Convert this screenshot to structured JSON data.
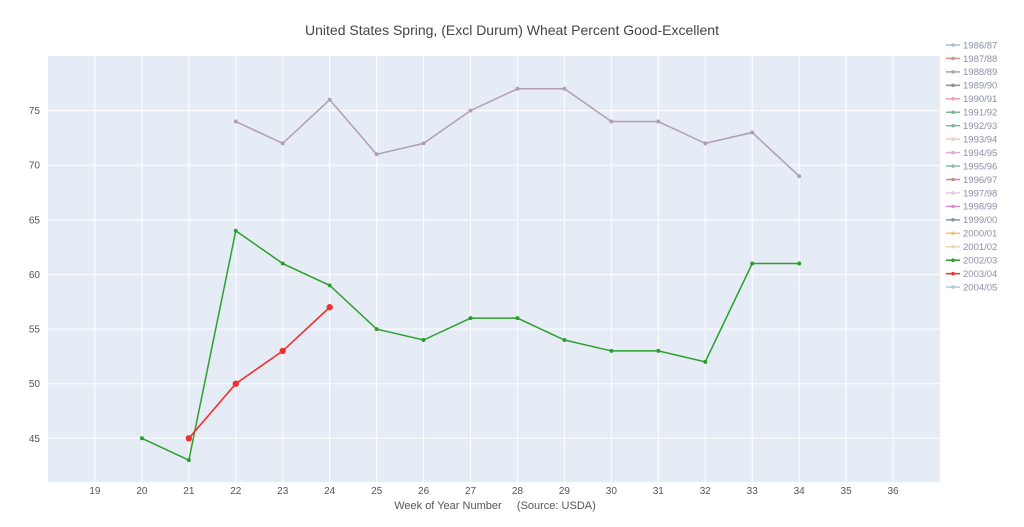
{
  "chart_data": {
    "type": "line",
    "title": "United States Spring, (Excl Durum) Wheat Percent Good-Excellent",
    "xlabel": "Week of Year Number     (Source: USDA)",
    "ylabel": "",
    "xlim": [
      18,
      37
    ],
    "ylim": [
      41,
      80
    ],
    "x_ticks": [
      19,
      20,
      21,
      22,
      23,
      24,
      25,
      26,
      27,
      28,
      29,
      30,
      31,
      32,
      33,
      34,
      35,
      36
    ],
    "y_ticks": [
      45,
      50,
      55,
      60,
      65,
      70,
      75
    ],
    "grid": true,
    "legend_position": "right",
    "background": "#e5ecf6",
    "series": [
      {
        "name": "1986/87",
        "color": "#a8bcd8",
        "x": [],
        "values": []
      },
      {
        "name": "1987/88",
        "color": "#c49a8e",
        "x": [],
        "values": []
      },
      {
        "name": "1988/89",
        "color": "#b39cb6",
        "x": [
          22,
          23,
          24,
          25,
          26,
          27,
          28,
          29,
          30,
          31,
          32,
          33,
          34
        ],
        "values": [
          74,
          72,
          76,
          71,
          72,
          75,
          77,
          77,
          74,
          74,
          72,
          73,
          69
        ]
      },
      {
        "name": "1989/90",
        "color": "#8e8e96",
        "x": [],
        "values": []
      },
      {
        "name": "1990/91",
        "color": "#e8a0b4",
        "x": [],
        "values": []
      },
      {
        "name": "1991/92",
        "color": "#7ab890",
        "x": [],
        "values": []
      },
      {
        "name": "1992/93",
        "color": "#88b4a8",
        "x": [],
        "values": []
      },
      {
        "name": "1993/94",
        "color": "#f0d0b8",
        "x": [],
        "values": []
      },
      {
        "name": "1994/95",
        "color": "#e0a8d8",
        "x": [],
        "values": []
      },
      {
        "name": "1995/96",
        "color": "#8fbcb0",
        "x": [],
        "values": []
      },
      {
        "name": "1996/97",
        "color": "#c48a84",
        "x": [],
        "values": []
      },
      {
        "name": "1997/98",
        "color": "#e8c8dc",
        "x": [],
        "values": []
      },
      {
        "name": "1998/99",
        "color": "#d890d0",
        "x": [],
        "values": []
      },
      {
        "name": "1999/00",
        "color": "#8a96a8",
        "x": [],
        "values": []
      },
      {
        "name": "2000/01",
        "color": "#f0c080",
        "x": [],
        "values": []
      },
      {
        "name": "2001/02",
        "color": "#e8d8b0",
        "x": [],
        "values": []
      },
      {
        "name": "2002/03",
        "color": "#2ca02c",
        "x": [
          20,
          21,
          22,
          23,
          24,
          25,
          26,
          27,
          28,
          29,
          30,
          31,
          32,
          33,
          34
        ],
        "values": [
          45,
          43,
          64,
          61,
          59,
          55,
          54,
          56,
          56,
          54,
          53,
          53,
          52,
          61,
          61
        ]
      },
      {
        "name": "2003/04",
        "color": "#f03030",
        "x": [
          21,
          22,
          23,
          24
        ],
        "values": [
          45,
          50,
          53,
          57
        ]
      },
      {
        "name": "2004/05",
        "color": "#b0c8e0",
        "x": [],
        "values": []
      }
    ]
  }
}
